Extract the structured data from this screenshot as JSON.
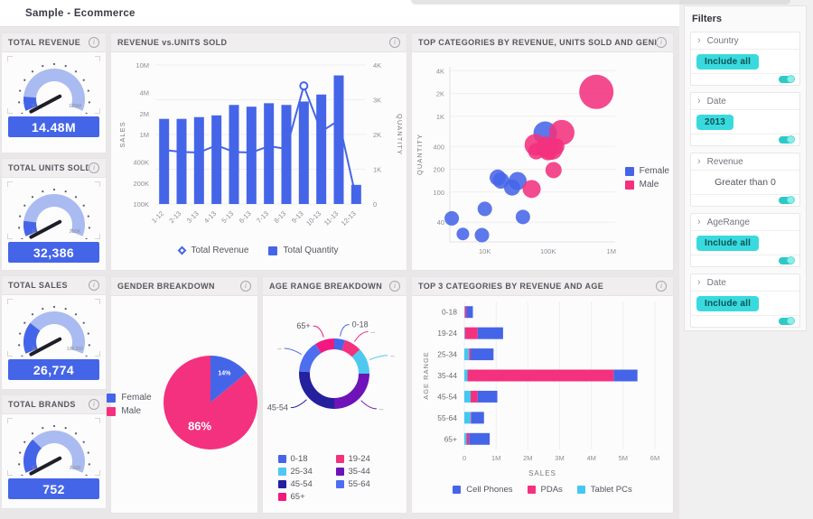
{
  "app": {
    "title": "Sample - Ecommerce"
  },
  "panels": {
    "combo_title": "REVENUE vs.UNITS SOLD",
    "scatter_title": "TOP CATEGORIES BY REVENUE, UNITS SOLD AND GENDER",
    "pie_title": "GENDER BREAKDOWN",
    "donut_title": "AGE RANGE BREAKDOWN",
    "stacked_title": "TOP 3 CATEGORIES BY REVENUE AND AGE"
  },
  "gauges": [
    {
      "title": "TOTAL REVENUE",
      "value": "14.48M",
      "min_label": "0",
      "max_label": "125M",
      "fraction": 0.12
    },
    {
      "title": "TOTAL UNITS SOLD",
      "value": "32,386",
      "min_label": "0",
      "max_label": "250K",
      "fraction": 0.13
    },
    {
      "title": "TOTAL SALES",
      "value": "26,774",
      "min_label": "0",
      "max_label": "100,000",
      "fraction": 0.27
    },
    {
      "title": "TOTAL BRANDS",
      "value": "752",
      "min_label": "0",
      "max_label": "2,500",
      "fraction": 0.3
    }
  ],
  "filters": {
    "title": "Filters",
    "items": [
      {
        "label": "Country",
        "value": "Include all",
        "value_type": "chip"
      },
      {
        "label": "Date",
        "value": "2013",
        "value_type": "chip"
      },
      {
        "label": "Revenue",
        "value": "Greater than 0",
        "value_type": "text"
      },
      {
        "label": "AgeRange",
        "value": "Include all",
        "value_type": "chip"
      },
      {
        "label": "Date",
        "value": "Include all",
        "value_type": "chip"
      }
    ]
  },
  "chart_data": [
    {
      "id": "revenue_vs_units",
      "type": "bar",
      "title": "REVENUE vs.UNITS SOLD",
      "categories": [
        "1-12",
        "2-13",
        "3-13",
        "4-13",
        "5-13",
        "6-13",
        "7-13",
        "8-13",
        "9-13",
        "10-13",
        "11-13",
        "12-13"
      ],
      "series": [
        {
          "name": "Total Revenue",
          "type": "line",
          "axis": "left",
          "values": [
            600000,
            560000,
            550000,
            700000,
            560000,
            550000,
            680000,
            620000,
            5000000,
            1100000,
            1600000,
            120000
          ]
        },
        {
          "name": "Total Quantity",
          "type": "bar",
          "axis": "right",
          "values": [
            2450,
            2450,
            2500,
            2550,
            2850,
            2800,
            2900,
            2850,
            2950,
            3150,
            3700,
            550
          ]
        }
      ],
      "left_axis": {
        "label": "SALES",
        "scale": "log",
        "ticks": [
          "100K",
          "200K",
          "400K",
          "1M",
          "2M",
          "4M",
          "10M"
        ],
        "tick_values": [
          100000,
          200000,
          400000,
          1000000,
          2000000,
          4000000,
          10000000
        ]
      },
      "right_axis": {
        "label": "QUANTITY",
        "scale": "linear",
        "ticks": [
          "0",
          "1K",
          "2K",
          "3K",
          "4K"
        ],
        "tick_values": [
          0,
          1000,
          2000,
          3000,
          4000
        ]
      },
      "legend": [
        "Total Revenue",
        "Total Quantity"
      ],
      "legend_position": "bottom",
      "grid": true
    },
    {
      "id": "top_categories_bubble",
      "type": "scatter",
      "title": "TOP CATEGORIES BY REVENUE, UNITS SOLD AND GENDER",
      "xlabel": "",
      "ylabel": "QUANTITY",
      "x_axis": {
        "scale": "log",
        "min": 2800,
        "max": 1150000,
        "ticks": [
          "10K",
          "100K",
          "1M"
        ],
        "tick_values": [
          10000,
          100000,
          1000000
        ]
      },
      "y_axis": {
        "scale": "log",
        "min": 22,
        "max": 4500,
        "ticks": [
          "40",
          "100",
          "200",
          "400",
          "1K",
          "2K",
          "4K"
        ],
        "tick_values": [
          40,
          100,
          200,
          400,
          1000,
          2000,
          4000
        ]
      },
      "series": [
        {
          "name": "Female",
          "color_key": "blue",
          "points": [
            [
              3000,
              45,
              8
            ],
            [
              4500,
              28,
              7
            ],
            [
              9000,
              27,
              8
            ],
            [
              10000,
              60,
              8
            ],
            [
              16000,
              155,
              9
            ],
            [
              18000,
              142,
              9
            ],
            [
              27000,
              115,
              9
            ],
            [
              33000,
              140,
              10
            ],
            [
              40000,
              47,
              8
            ],
            [
              90000,
              600,
              13
            ]
          ]
        },
        {
          "name": "Male",
          "color_key": "pink",
          "points": [
            [
              55000,
              110,
              10
            ],
            [
              63000,
              420,
              12
            ],
            [
              65000,
              345,
              9
            ],
            [
              95000,
              390,
              12
            ],
            [
              100000,
              345,
              10
            ],
            [
              115000,
              370,
              12
            ],
            [
              135000,
              400,
              9
            ],
            [
              122000,
              195,
              9
            ],
            [
              165000,
              610,
              14
            ],
            [
              580000,
              2100,
              19
            ]
          ]
        }
      ],
      "legend": [
        "Female",
        "Male"
      ],
      "legend_position": "right",
      "grid": true
    },
    {
      "id": "gender_pie",
      "type": "pie",
      "title": "GENDER BREAKDOWN",
      "labels": [
        "Female",
        "Male"
      ],
      "values": [
        14,
        86
      ],
      "value_labels": [
        "14%",
        "86%"
      ],
      "legend_position": "left"
    },
    {
      "id": "age_donut",
      "type": "pie",
      "title": "AGE RANGE BREAKDOWN",
      "labels": [
        "0-18",
        "19-24",
        "25-34",
        "35-44",
        "45-54",
        "55-64",
        "65+"
      ],
      "values": [
        5,
        8,
        12,
        25,
        26,
        15,
        9
      ],
      "callouts": [
        "0-18",
        "–",
        "–",
        "–",
        "45-54",
        "–",
        "65+"
      ],
      "legend_position": "bottom"
    },
    {
      "id": "top3_stacked",
      "type": "bar",
      "title": "TOP 3 CATEGORIES BY REVENUE AND AGE",
      "orientation": "horizontal",
      "stacked": true,
      "unit": "M",
      "categories": [
        "0-18",
        "19-24",
        "25-34",
        "35-44",
        "45-54",
        "55-64",
        "65+"
      ],
      "series": [
        {
          "name": "Tablet PCs",
          "color_key": "cyan",
          "values": [
            0.02,
            0.02,
            0.15,
            0.1,
            0.2,
            0.2,
            0.07
          ]
        },
        {
          "name": "PDAs",
          "color_key": "pink",
          "values": [
            0.05,
            0.4,
            0.05,
            4.6,
            0.22,
            0.02,
            0.08
          ]
        },
        {
          "name": "Cell Phones",
          "color_key": "blue",
          "values": [
            0.2,
            0.8,
            0.72,
            0.75,
            0.62,
            0.4,
            0.65
          ]
        }
      ],
      "legend": [
        "Cell Phones",
        "PDAs",
        "Tablet PCs"
      ],
      "legend_position": "bottom",
      "x_ticks": [
        "0",
        "1M",
        "2M",
        "3M",
        "4M",
        "5M",
        "6M"
      ],
      "x_tick_values": [
        0,
        1,
        2,
        3,
        4,
        5,
        6
      ],
      "x_max": 6,
      "xlabel": "SALES",
      "ylabel": "AGE RANGE",
      "grid": true
    }
  ],
  "colors": {
    "blue": "#4565e8",
    "pink": "#f3317e",
    "cyan": "#45c8f0",
    "teal": "#38dadd",
    "gauge_arc": "#a9bbf0",
    "gauge_needle": "#1e1e28",
    "age_range": [
      "#4565e8",
      "#f3317e",
      "#4fc8f0",
      "#6d13b8",
      "#24209e",
      "#4e6ef0",
      "#f2187f"
    ],
    "grid": "#efedf3",
    "tick_text": "#8d8d98"
  }
}
